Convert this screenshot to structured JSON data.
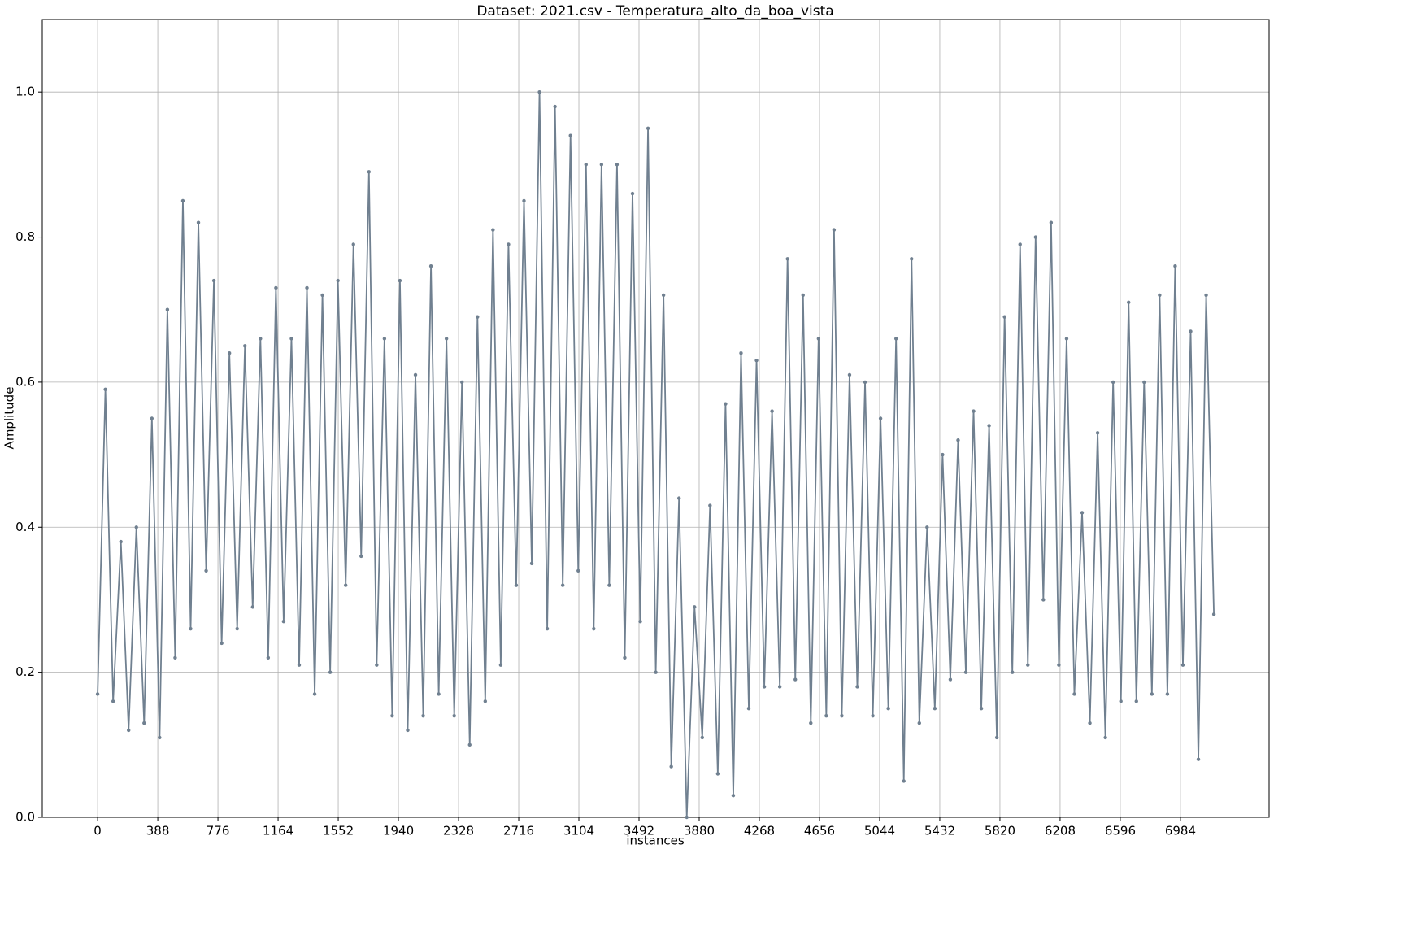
{
  "chart_data": {
    "type": "line",
    "title": "Dataset: 2021.csv - Temperatura_alto_da_boa_vista",
    "x_label": "instances",
    "y_label": "Amplitude",
    "color": "#708090",
    "grid": true,
    "markers": true,
    "xlim": [
      -357,
      7556
    ],
    "ylim": [
      0,
      1.1
    ],
    "xticks": [
      0,
      388,
      776,
      1164,
      1552,
      1940,
      2328,
      2716,
      3104,
      3492,
      3880,
      4268,
      4656,
      5044,
      5432,
      5820,
      6208,
      6596,
      6984
    ],
    "yticks": [
      {
        "value": 0,
        "label": "0.0"
      },
      0.2,
      0.4,
      0.6,
      0.8,
      {
        "value": 1,
        "label": "1.0"
      }
    ],
    "x": [
      0,
      50,
      100,
      150,
      200,
      250,
      300,
      350,
      400,
      450,
      500,
      550,
      600,
      650,
      700,
      750,
      800,
      850,
      900,
      950,
      1000,
      1050,
      1100,
      1150,
      1200,
      1250,
      1300,
      1350,
      1400,
      1450,
      1500,
      1550,
      1600,
      1650,
      1700,
      1750,
      1800,
      1850,
      1900,
      1950,
      2000,
      2050,
      2100,
      2150,
      2200,
      2250,
      2300,
      2350,
      2400,
      2450,
      2500,
      2550,
      2600,
      2650,
      2700,
      2750,
      2800,
      2850,
      2900,
      2950,
      3000,
      3050,
      3100,
      3150,
      3200,
      3250,
      3300,
      3350,
      3400,
      3450,
      3500,
      3550,
      3600,
      3650,
      3700,
      3750,
      3800,
      3850,
      3900,
      3950,
      4000,
      4050,
      4100,
      4150,
      4200,
      4250,
      4300,
      4350,
      4400,
      4450,
      4500,
      4550,
      4600,
      4650,
      4700,
      4750,
      4800,
      4850,
      4900,
      4950,
      5000,
      5050,
      5100,
      5150,
      5200,
      5250,
      5300,
      5350,
      5400,
      5450,
      5500,
      5550,
      5600,
      5650,
      5700,
      5750,
      5800,
      5850,
      5900,
      5950,
      6000,
      6050,
      6100,
      6150,
      6200,
      6250,
      6300,
      6350,
      6400,
      6450,
      6500,
      6550,
      6600,
      6650,
      6700,
      6750,
      6800,
      6850,
      6900,
      6950,
      7000,
      7050,
      7100,
      7150,
      7200
    ],
    "values": [
      0.17,
      0.59,
      0.16,
      0.38,
      0.12,
      0.4,
      0.13,
      0.55,
      0.11,
      0.7,
      0.22,
      0.85,
      0.26,
      0.82,
      0.34,
      0.74,
      0.24,
      0.64,
      0.26,
      0.65,
      0.29,
      0.66,
      0.22,
      0.73,
      0.27,
      0.66,
      0.21,
      0.73,
      0.17,
      0.72,
      0.2,
      0.74,
      0.32,
      0.79,
      0.36,
      0.89,
      0.21,
      0.66,
      0.14,
      0.74,
      0.12,
      0.61,
      0.14,
      0.76,
      0.17,
      0.66,
      0.14,
      0.6,
      0.1,
      0.69,
      0.16,
      0.81,
      0.21,
      0.79,
      0.32,
      0.85,
      0.35,
      1.0,
      0.26,
      0.98,
      0.32,
      0.94,
      0.34,
      0.9,
      0.26,
      0.9,
      0.32,
      0.9,
      0.22,
      0.86,
      0.27,
      0.95,
      0.2,
      0.72,
      0.07,
      0.44,
      0.0,
      0.29,
      0.11,
      0.43,
      0.06,
      0.57,
      0.03,
      0.64,
      0.15,
      0.63,
      0.18,
      0.56,
      0.18,
      0.77,
      0.19,
      0.72,
      0.13,
      0.66,
      0.14,
      0.81,
      0.14,
      0.61,
      0.18,
      0.6,
      0.14,
      0.55,
      0.15,
      0.66,
      0.05,
      0.77,
      0.13,
      0.4,
      0.15,
      0.5,
      0.19,
      0.52,
      0.2,
      0.56,
      0.15,
      0.54,
      0.11,
      0.69,
      0.2,
      0.79,
      0.21,
      0.8,
      0.3,
      0.82,
      0.21,
      0.66,
      0.17,
      0.42,
      0.13,
      0.53,
      0.11,
      0.6,
      0.16,
      0.71,
      0.16,
      0.6,
      0.17,
      0.72,
      0.17,
      0.76,
      0.21,
      0.67,
      0.08,
      0.72,
      0.28
    ]
  }
}
